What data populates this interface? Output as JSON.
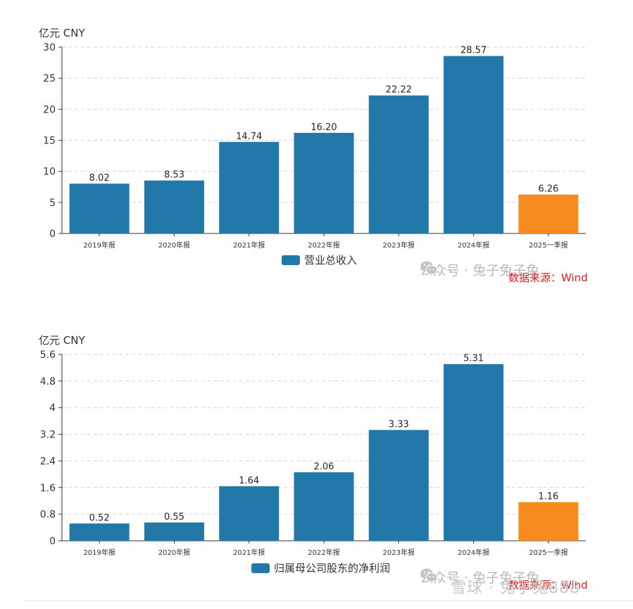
{
  "colors": {
    "primary": "#2178a9",
    "highlight": "#f68b1f",
    "grid": "#d4d4d4",
    "axis": "#333333"
  },
  "watermark": {
    "text": "公众号 · 兔子兔子兔",
    "icon": "wechat-icon"
  },
  "source_note": "数据来源：Wind",
  "platform_mark": "雪球 · 兔子兔888",
  "chart_data": [
    {
      "type": "bar",
      "unit_label": "亿元  CNY",
      "categories": [
        "2019年报",
        "2020年报",
        "2021年报",
        "2022年报",
        "2023年报",
        "2024年报",
        "2025一季报"
      ],
      "series": [
        {
          "name": "营业总收入",
          "values": [
            8.02,
            8.53,
            14.74,
            16.2,
            22.22,
            28.57,
            6.26
          ]
        }
      ],
      "value_labels": [
        "8.02",
        "8.53",
        "14.74",
        "16.20",
        "22.22",
        "28.57",
        "6.26"
      ],
      "highlight_index": 6,
      "yticks": [
        "0",
        "5",
        "10",
        "15",
        "20",
        "25",
        "30"
      ],
      "ylim": [
        0,
        30
      ],
      "grid": true,
      "legend_position": "bottom-center"
    },
    {
      "type": "bar",
      "unit_label": "亿元  CNY",
      "categories": [
        "2019年报",
        "2020年报",
        "2021年报",
        "2022年报",
        "2023年报",
        "2024年报",
        "2025一季报"
      ],
      "series": [
        {
          "name": "归属母公司股东的净利润",
          "values": [
            0.52,
            0.55,
            1.64,
            2.06,
            3.33,
            5.31,
            1.16
          ]
        }
      ],
      "value_labels": [
        "0.52",
        "0.55",
        "1.64",
        "2.06",
        "3.33",
        "5.31",
        "1.16"
      ],
      "highlight_index": 6,
      "yticks": [
        "0",
        "0.8",
        "1.6",
        "2.4",
        "3.2",
        "4",
        "4.8",
        "5.6"
      ],
      "ylim": [
        0,
        5.6
      ],
      "grid": true,
      "legend_position": "bottom-center"
    }
  ]
}
